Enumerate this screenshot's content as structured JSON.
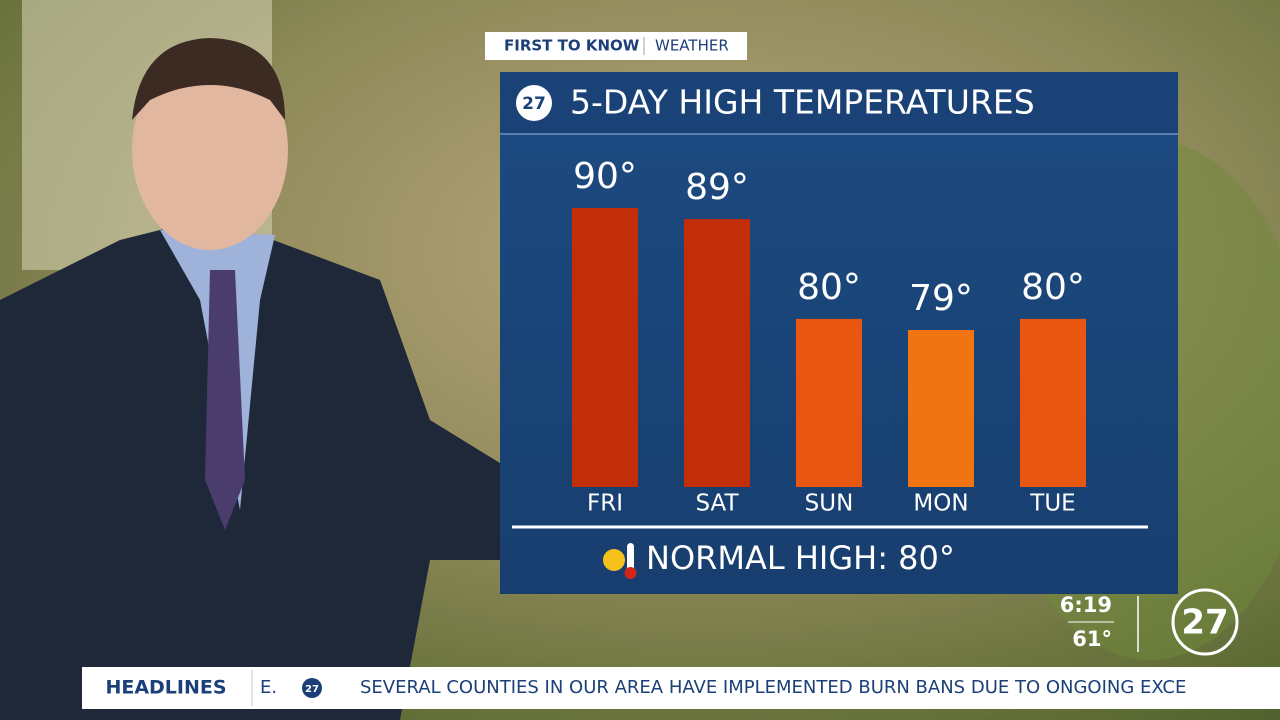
{
  "header": {
    "brand": "FIRST TO KNOW",
    "section": "WEATHER"
  },
  "logo": "27",
  "chart_data": {
    "type": "bar",
    "title": "5-DAY HIGH TEMPERATURES",
    "categories": [
      "FRI",
      "SAT",
      "SUN",
      "MON",
      "TUE"
    ],
    "values": [
      90,
      89,
      80,
      79,
      80
    ],
    "value_labels": [
      "90°",
      "89°",
      "80°",
      "79°",
      "80°"
    ],
    "colors": [
      "#c12e08",
      "#c12e08",
      "#e9560f",
      "#f07412",
      "#e9560f"
    ],
    "note": "NORMAL HIGH: 80°"
  },
  "station": {
    "time": "6:19",
    "temperature": "61°"
  },
  "ticker": {
    "label": "HEADLINES",
    "prefix": "E.",
    "text": "SEVERAL COUNTIES IN OUR AREA HAVE IMPLEMENTED BURN BANS DUE TO ONGOING EXCE"
  }
}
